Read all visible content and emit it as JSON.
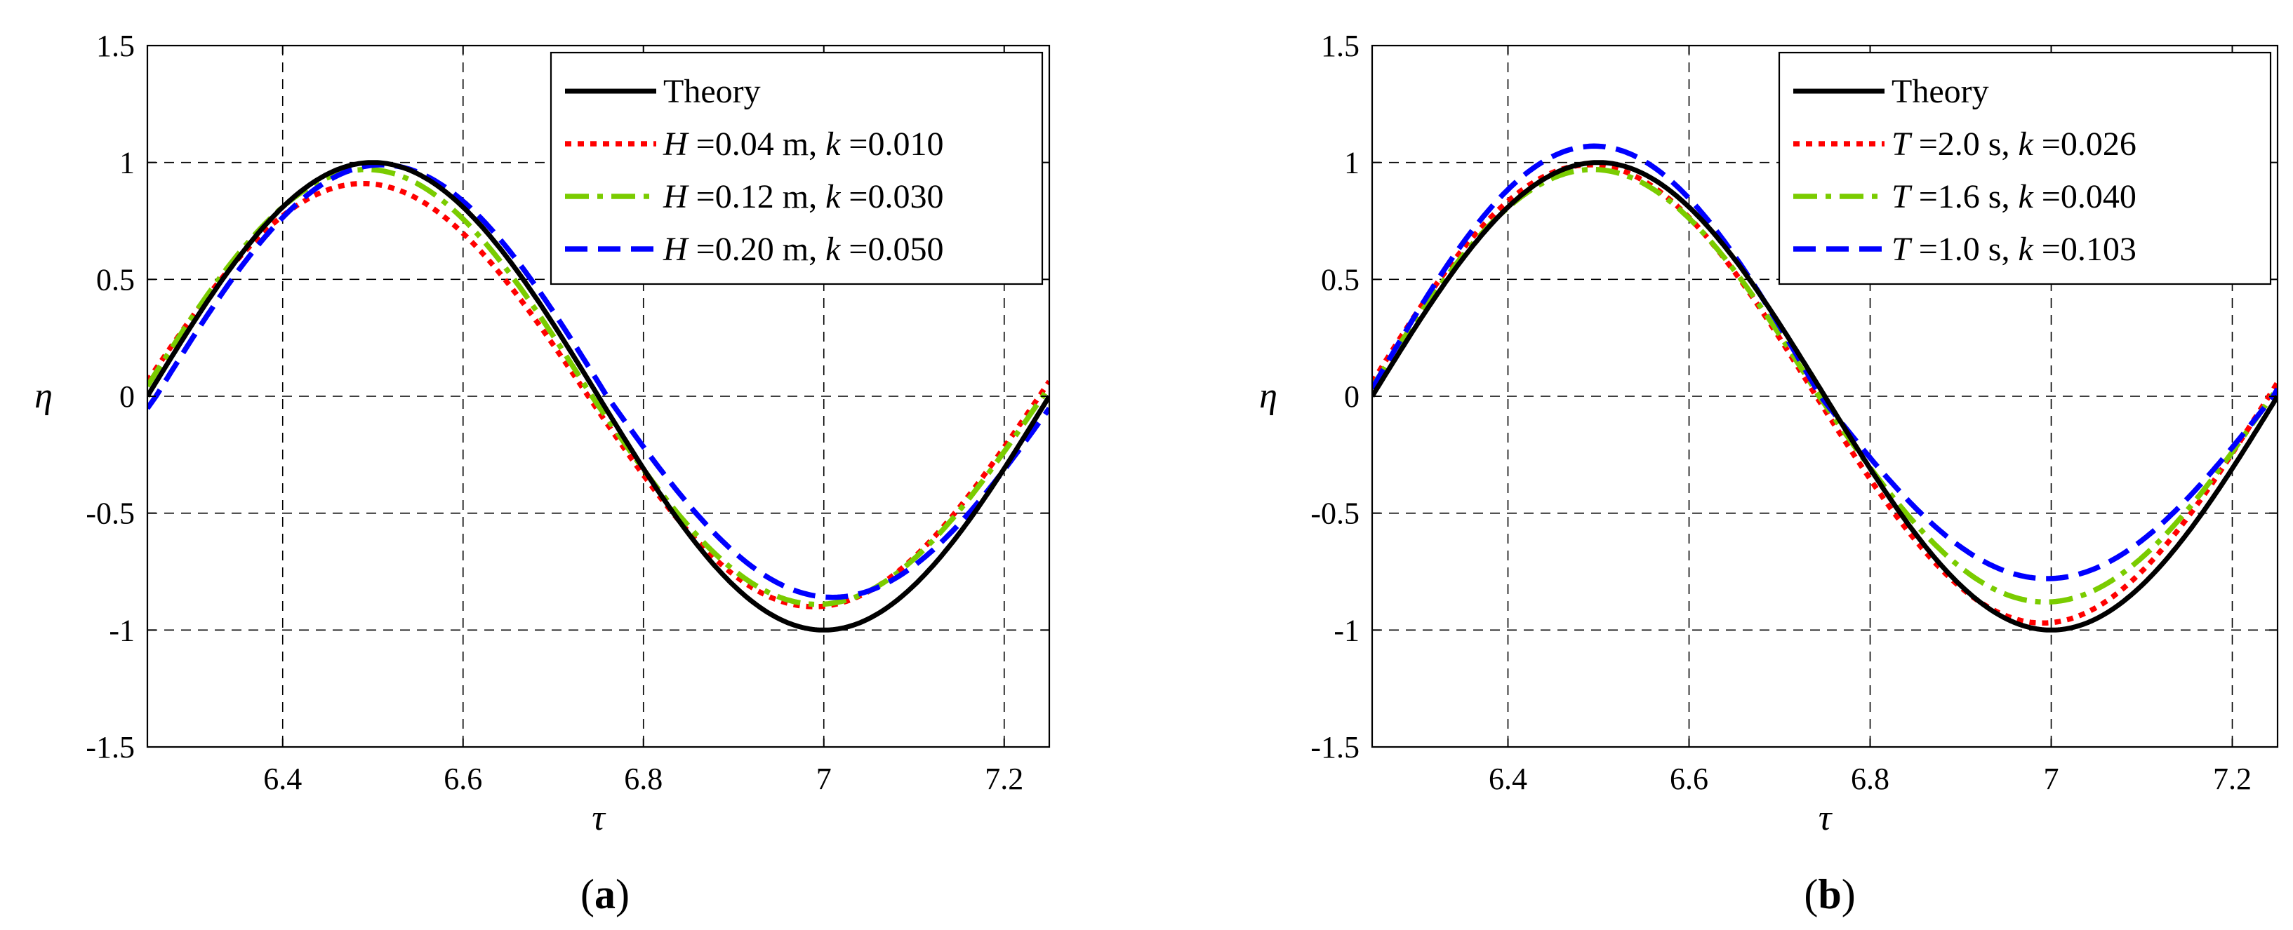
{
  "chart_data": [
    {
      "type": "line",
      "panel_label": {
        "open": "(",
        "letter": "a",
        "close": ")"
      },
      "xlabel": "τ",
      "ylabel": "η",
      "xlim": [
        6.25,
        7.25
      ],
      "ylim": [
        -1.5,
        1.5
      ],
      "xticks": [
        6.4,
        6.6,
        6.8,
        7,
        7.2
      ],
      "xtick_labels": [
        "6.4",
        "6.6",
        "6.8",
        "7",
        "7.2"
      ],
      "yticks": [
        -1.5,
        -1,
        -0.5,
        0,
        0.5,
        1,
        1.5
      ],
      "ytick_labels": [
        "-1.5",
        "-1",
        "-0.5",
        "0",
        "0.5",
        "1",
        "1.5"
      ],
      "grid": true,
      "legend_position": "top-right",
      "series": [
        {
          "name": "Theory",
          "legend_parts": [
            {
              "t": "Theory",
              "i": false
            }
          ],
          "color": "#000000",
          "dash": "solid",
          "amp_pos": 1.0,
          "amp_neg": 1.0,
          "phase": 0.0
        },
        {
          "name": "H =0.04 m, k =0.010",
          "legend_parts": [
            {
              "t": "H",
              "i": true
            },
            {
              "t": " =0.04 m, ",
              "i": false
            },
            {
              "t": "k",
              "i": true
            },
            {
              "t": " =0.010",
              "i": false
            }
          ],
          "color": "#ff0000",
          "dash": "dotted",
          "amp_pos": 0.91,
          "amp_neg": 0.9,
          "phase": 0.07
        },
        {
          "name": "H =0.12 m, k =0.030",
          "legend_parts": [
            {
              "t": "H",
              "i": true
            },
            {
              "t": " =0.12 m, ",
              "i": false
            },
            {
              "t": "k",
              "i": true
            },
            {
              "t": " =0.030",
              "i": false
            }
          ],
          "color": "#7acc00",
          "dash": "dashdot",
          "amp_pos": 0.97,
          "amp_neg": 0.89,
          "phase": 0.045
        },
        {
          "name": "H =0.20 m, k =0.050",
          "legend_parts": [
            {
              "t": "H",
              "i": true
            },
            {
              "t": " =0.20 m, ",
              "i": false
            },
            {
              "t": "k",
              "i": true
            },
            {
              "t": " =0.050",
              "i": false
            }
          ],
          "color": "#0000ff",
          "dash": "dashed",
          "amp_pos": 0.99,
          "amp_neg": 0.86,
          "phase": -0.06
        }
      ]
    },
    {
      "type": "line",
      "panel_label": {
        "open": "(",
        "letter": "b",
        "close": ")"
      },
      "xlabel": "τ",
      "ylabel": "η",
      "xlim": [
        6.25,
        7.25
      ],
      "ylim": [
        -1.5,
        1.5
      ],
      "xticks": [
        6.4,
        6.6,
        6.8,
        7,
        7.2
      ],
      "xtick_labels": [
        "6.4",
        "6.6",
        "6.8",
        "7",
        "7.2"
      ],
      "yticks": [
        -1.5,
        -1,
        -0.5,
        0,
        0.5,
        1,
        1.5
      ],
      "ytick_labels": [
        "-1.5",
        "-1",
        "-0.5",
        "0",
        "0.5",
        "1",
        "1.5"
      ],
      "grid": true,
      "legend_position": "top-right",
      "series": [
        {
          "name": "Theory",
          "legend_parts": [
            {
              "t": "Theory",
              "i": false
            }
          ],
          "color": "#000000",
          "dash": "solid",
          "amp_pos": 1.0,
          "amp_neg": 1.0,
          "phase": 0.0
        },
        {
          "name": "T =2.0 s, k =0.026",
          "legend_parts": [
            {
              "t": "T",
              "i": true
            },
            {
              "t": " =2.0 s, ",
              "i": false
            },
            {
              "t": "k",
              "i": true
            },
            {
              "t": " =0.026",
              "i": false
            }
          ],
          "color": "#ff0000",
          "dash": "dotted",
          "amp_pos": 0.99,
          "amp_neg": 0.97,
          "phase": 0.06
        },
        {
          "name": "T =1.6 s, k =0.040",
          "legend_parts": [
            {
              "t": "T",
              "i": true
            },
            {
              "t": " =1.6 s, ",
              "i": false
            },
            {
              "t": "k",
              "i": true
            },
            {
              "t": " =0.040",
              "i": false
            }
          ],
          "color": "#7acc00",
          "dash": "dashdot",
          "amp_pos": 0.97,
          "amp_neg": 0.88,
          "phase": 0.04
        },
        {
          "name": "T =1.0 s, k =0.103",
          "legend_parts": [
            {
              "t": "T",
              "i": true
            },
            {
              "t": " =1.0 s, ",
              "i": false
            },
            {
              "t": "k",
              "i": true
            },
            {
              "t": " =0.103",
              "i": false
            }
          ],
          "color": "#0000ff",
          "dash": "dashed",
          "amp_pos": 1.07,
          "amp_neg": 0.78,
          "phase": 0.03
        }
      ]
    }
  ]
}
